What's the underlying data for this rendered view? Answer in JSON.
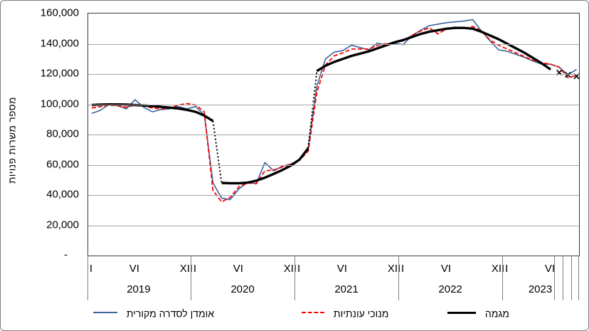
{
  "chart_data": {
    "type": "line",
    "title": "",
    "ylabel": "מספר משרות פנויות",
    "ylim": [
      0,
      160000
    ],
    "ytick_step": 20000,
    "ytick_labels": [
      "160,000",
      "140,000",
      "120,000",
      "100,000",
      "80,000",
      "60,000",
      "40,000",
      "20,000",
      "-"
    ],
    "x_years": [
      "2019",
      "2020",
      "2021",
      "2022",
      "2023"
    ],
    "x_month_tick_labels": [
      "I",
      "VI",
      "XII"
    ],
    "months_total": 57,
    "x_range_note": "monthly data, January 2019 – September 2023",
    "grid": "horizontal",
    "legend_position": "bottom",
    "series": [
      {
        "name": "אומדן לסדרה מקורית",
        "color": "#3b639c",
        "style": "solid",
        "start_month": 0,
        "values": [
          94000,
          96000,
          100000,
          99000,
          97000,
          103000,
          98000,
          95000,
          96500,
          97000,
          98500,
          97000,
          98500,
          93000,
          48000,
          38000,
          37000,
          44000,
          48500,
          47500,
          61500,
          56000,
          59000,
          60500,
          63500,
          71500,
          112000,
          130000,
          134500,
          135500,
          139000,
          137500,
          136000,
          140500,
          139000,
          140000,
          139500,
          145500,
          149000,
          152000,
          153000,
          154000,
          154500,
          155000,
          156000,
          148500,
          142000,
          136000,
          135000,
          133000,
          131000,
          128500,
          126500,
          126500,
          124500,
          119500,
          123000
        ]
      },
      {
        "name": "מנוכי עונתיות",
        "color": "#ff0000",
        "style": "dashed",
        "start_month": 0,
        "values": [
          97500,
          98500,
          99500,
          99000,
          98000,
          99500,
          99000,
          97500,
          97000,
          97500,
          99500,
          100500,
          99500,
          95000,
          43000,
          35500,
          38500,
          45500,
          48000,
          47500,
          56000,
          56500,
          58500,
          60500,
          63000,
          69000,
          108000,
          126000,
          132000,
          134000,
          136500,
          136500,
          136500,
          139000,
          140000,
          140500,
          142000,
          145500,
          148500,
          150500,
          146500,
          150000,
          151000,
          150000,
          151500,
          148500,
          142500,
          139000,
          136500,
          134000,
          131500,
          129000,
          127500,
          126500,
          124500,
          117500,
          119000
        ]
      },
      {
        "name": "מגמה",
        "color": "#000000",
        "style": "trend",
        "segments": [
          {
            "start_month": 0,
            "values": [
              99500,
              99800,
              99900,
              99900,
              99800,
              99500,
              99200,
              98800,
              98300,
              97800,
              97200,
              96300,
              95000,
              92500,
              89000
            ]
          },
          {
            "start_month": 15,
            "values": [
              48000,
              47800,
              47800,
              48200,
              49500,
              51500,
              54000,
              56500,
              59500,
              63500,
              71000
            ]
          },
          {
            "start_month": 26,
            "values": [
              122000,
              125500,
              128000,
              130000,
              132000,
              133500,
              135000,
              137000,
              139000,
              141000,
              142500,
              144500,
              146500,
              148000,
              149000,
              150000,
              150500,
              150500,
              150000,
              148000,
              145500,
              143000,
              140000,
              137000,
              134000,
              130500,
              127000,
              123000
            ]
          }
        ],
        "connectors": [
          [
            14,
            89000,
            15,
            48000
          ],
          [
            25,
            71000,
            26,
            122000
          ]
        ],
        "markers": [
          {
            "month": 54,
            "value": 121000
          },
          {
            "month": 55,
            "value": 119500
          },
          {
            "month": 56,
            "value": 118500
          }
        ]
      }
    ],
    "colors": {
      "original_series": "#3b639c",
      "seasonally_adjusted": "#ff0000",
      "trend": "#000000",
      "gridline": "#a6a6a6",
      "axis": "#3a3a3a"
    }
  }
}
